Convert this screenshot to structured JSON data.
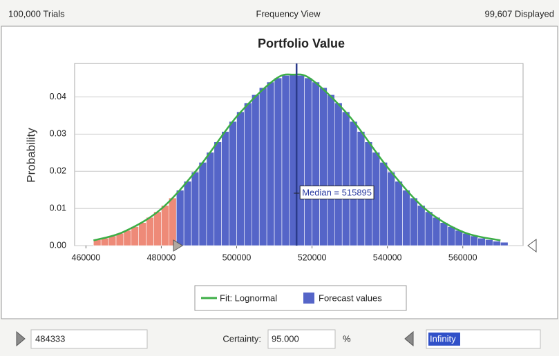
{
  "header": {
    "left": "100,000 Trials",
    "center": "Frequency View",
    "right": "99,607 Displayed"
  },
  "chart_data": {
    "type": "histogram",
    "title": "Portfolio Value",
    "ylabel": "Probability",
    "bins": [
      462000,
      464000,
      466000,
      468000,
      470000,
      472000,
      474000,
      476000,
      478000,
      480000,
      482000,
      484000,
      486000,
      488000,
      490000,
      492000,
      494000,
      496000,
      498000,
      500000,
      502000,
      504000,
      506000,
      508000,
      510000,
      512000,
      514000,
      516000,
      518000,
      520000,
      522000,
      524000,
      526000,
      528000,
      530000,
      532000,
      534000,
      536000,
      538000,
      540000,
      542000,
      544000,
      546000,
      548000,
      550000,
      552000,
      554000,
      556000,
      558000,
      560000,
      562000,
      564000,
      566000,
      568000,
      570000,
      572000
    ],
    "values": [
      0.0016,
      0.002,
      0.0026,
      0.0033,
      0.0041,
      0.0051,
      0.0062,
      0.0076,
      0.0091,
      0.0108,
      0.0128,
      0.0149,
      0.0173,
      0.0198,
      0.0224,
      0.0251,
      0.0279,
      0.0307,
      0.0334,
      0.036,
      0.0384,
      0.0406,
      0.0425,
      0.044,
      0.0451,
      0.0458,
      0.046,
      0.0458,
      0.0451,
      0.044,
      0.0425,
      0.0406,
      0.0384,
      0.036,
      0.0334,
      0.0307,
      0.0279,
      0.0251,
      0.0224,
      0.0198,
      0.0173,
      0.0149,
      0.0128,
      0.0108,
      0.0091,
      0.0076,
      0.0062,
      0.0051,
      0.0041,
      0.0033,
      0.0026,
      0.002,
      0.0016,
      0.0012,
      0.0009
    ],
    "name": "Forecast values",
    "color": "#5565c8",
    "highlight_color": "#ee8a78",
    "fit": {
      "name": "Fit: Lognormal",
      "color": "#3cae46",
      "x": [
        462000,
        470000,
        480000,
        490000,
        500000,
        510000,
        515000,
        520000,
        530000,
        540000,
        550000,
        560000,
        570000
      ],
      "values": [
        0.0014,
        0.0037,
        0.0099,
        0.0211,
        0.0347,
        0.0446,
        0.046,
        0.0446,
        0.0347,
        0.0211,
        0.0099,
        0.0037,
        0.0014
      ]
    },
    "median": {
      "value": 515895,
      "label": "Median = 515895"
    },
    "xlim": [
      457000,
      576000
    ],
    "ylim": [
      0,
      0.049
    ],
    "xticks": [
      460000,
      480000,
      500000,
      520000,
      540000,
      560000
    ],
    "yticks": [
      {
        "value": 0,
        "label": "0.00"
      },
      0.01,
      0.02,
      0.03,
      0.04
    ],
    "grid": true
  },
  "controls": {
    "lower": "484333",
    "certainty_label": "Certainty:",
    "certainty": "95.000",
    "unit": "%",
    "upper": "Infinity"
  }
}
